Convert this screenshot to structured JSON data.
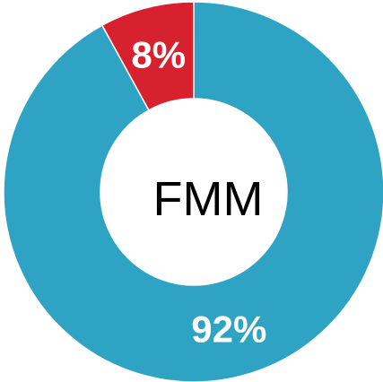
{
  "chart_data": {
    "type": "donut",
    "center_label": "FMM",
    "series": [
      {
        "values": [
          92,
          8
        ],
        "value_labels": [
          "92%",
          "8%"
        ],
        "colors": [
          "#2fa3c3",
          "#d8212e"
        ]
      }
    ]
  }
}
